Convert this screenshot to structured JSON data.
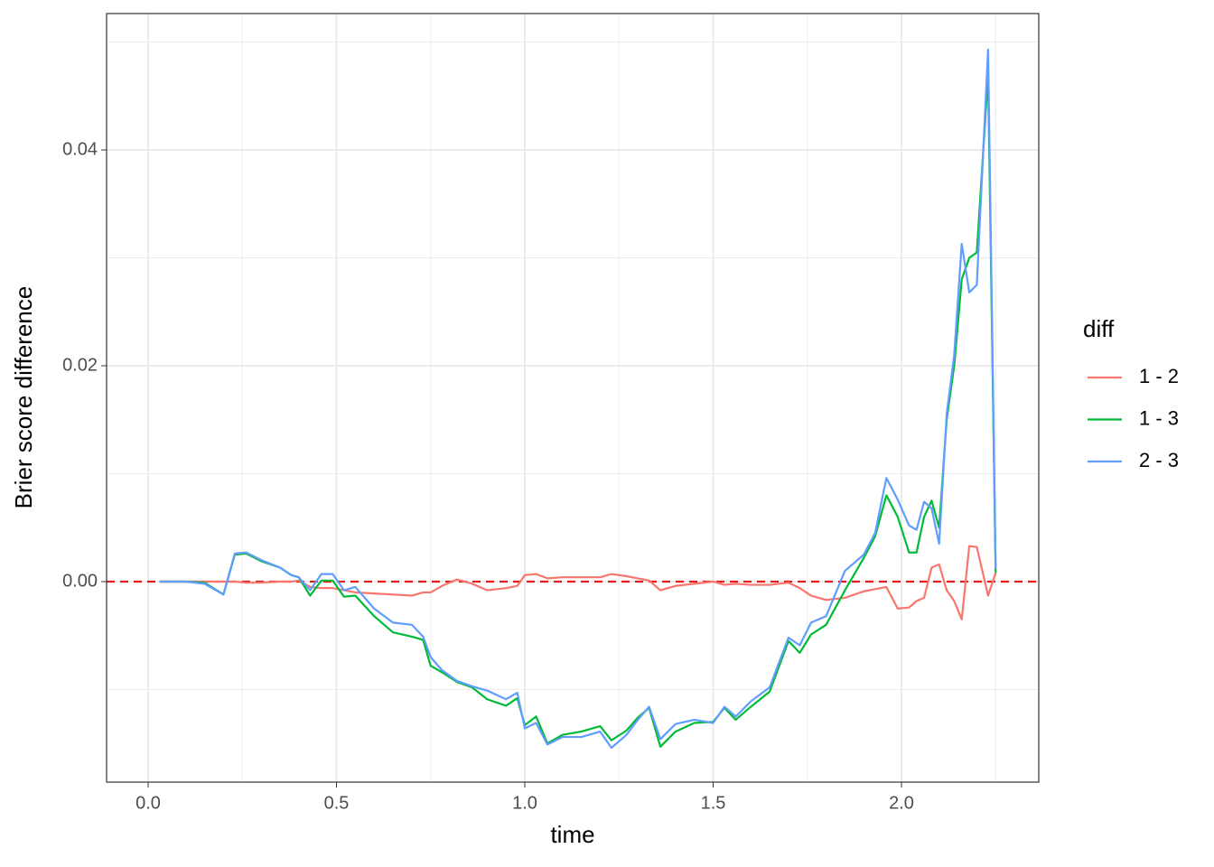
{
  "chart_data": {
    "type": "line",
    "x_label": "time",
    "y_label": "Brier score difference",
    "legend_title": "diff",
    "x": [
      0.03,
      0.1,
      0.15,
      0.2,
      0.23,
      0.26,
      0.3,
      0.35,
      0.38,
      0.4,
      0.43,
      0.46,
      0.49,
      0.52,
      0.55,
      0.6,
      0.65,
      0.7,
      0.73,
      0.75,
      0.78,
      0.82,
      0.86,
      0.9,
      0.95,
      0.98,
      1.0,
      1.03,
      1.06,
      1.1,
      1.15,
      1.2,
      1.23,
      1.27,
      1.3,
      1.33,
      1.36,
      1.4,
      1.45,
      1.5,
      1.53,
      1.56,
      1.6,
      1.65,
      1.7,
      1.73,
      1.76,
      1.8,
      1.85,
      1.9,
      1.93,
      1.96,
      1.99,
      2.02,
      2.04,
      2.06,
      2.08,
      2.1,
      2.12,
      2.14,
      2.16,
      2.18,
      2.2,
      2.23,
      2.25
    ],
    "series": [
      {
        "name": "1 - 2",
        "color": "#F8766D",
        "values": [
          0,
          0,
          0,
          0,
          0,
          -0.0001,
          -0.0001,
          0,
          0,
          0.0001,
          -0.0005,
          -0.0006,
          -0.0006,
          -0.0008,
          -0.001,
          -0.0011,
          -0.0012,
          -0.0013,
          -0.001,
          -0.001,
          -0.0004,
          0.0002,
          -0.0002,
          -0.0008,
          -0.0006,
          -0.0004,
          0.0006,
          0.0007,
          0.0003,
          0.0004,
          0.0004,
          0.0004,
          0.0007,
          0.0005,
          0.0003,
          0.0001,
          -0.0008,
          -0.0004,
          -0.0002,
          0,
          -0.0003,
          -0.0002,
          -0.0003,
          -0.0003,
          -0.0001,
          -0.0006,
          -0.0013,
          -0.0017,
          -0.0015,
          -0.0009,
          -0.0007,
          -0.0005,
          -0.0025,
          -0.0024,
          -0.0018,
          -0.0015,
          0.0013,
          0.0016,
          -0.0008,
          -0.0018,
          -0.0035,
          0.0033,
          0.0032,
          -0.0013,
          0.0008
        ]
      },
      {
        "name": "1 - 3",
        "color": "#00BA38",
        "values": [
          0,
          0,
          -0.0001,
          -0.0012,
          0.0025,
          0.0026,
          0.0019,
          0.0013,
          0.0006,
          0.0004,
          -0.0013,
          0.0001,
          0.0001,
          -0.0014,
          -0.0013,
          -0.0032,
          -0.0047,
          -0.0051,
          -0.0054,
          -0.0078,
          -0.0084,
          -0.0093,
          -0.0098,
          -0.0109,
          -0.0115,
          -0.0108,
          -0.0133,
          -0.0125,
          -0.015,
          -0.0142,
          -0.0139,
          -0.0134,
          -0.0147,
          -0.0138,
          -0.0126,
          -0.0117,
          -0.0153,
          -0.0139,
          -0.0131,
          -0.013,
          -0.0117,
          -0.0128,
          -0.0116,
          -0.0102,
          -0.0055,
          -0.0066,
          -0.0049,
          -0.004,
          -0.0008,
          0.0022,
          0.0042,
          0.008,
          0.006,
          0.0027,
          0.0027,
          0.006,
          0.0075,
          0.005,
          0.015,
          0.02,
          0.028,
          0.03,
          0.0305,
          0.047,
          0.0008
        ]
      },
      {
        "name": "2 - 3",
        "color": "#619CFF",
        "values": [
          0,
          0,
          -0.0002,
          -0.0012,
          0.0026,
          0.0027,
          0.002,
          0.0013,
          0.0006,
          0.0004,
          -0.0008,
          0.0007,
          0.0007,
          -0.0008,
          -0.0005,
          -0.0025,
          -0.0038,
          -0.004,
          -0.0051,
          -0.007,
          -0.0082,
          -0.0092,
          -0.0097,
          -0.0101,
          -0.0109,
          -0.0103,
          -0.0136,
          -0.0131,
          -0.0151,
          -0.0144,
          -0.0144,
          -0.0139,
          -0.0154,
          -0.0142,
          -0.0128,
          -0.0116,
          -0.0146,
          -0.0132,
          -0.0128,
          -0.0131,
          -0.0116,
          -0.0125,
          -0.0111,
          -0.0098,
          -0.0052,
          -0.0059,
          -0.0038,
          -0.0032,
          0.001,
          0.0025,
          0.0045,
          0.0096,
          0.0076,
          0.0052,
          0.0048,
          0.0074,
          0.0068,
          0.0035,
          0.0155,
          0.021,
          0.0313,
          0.0268,
          0.0275,
          0.0493,
          0.0012
        ]
      }
    ],
    "xlim": [
      -0.1103,
      2.3645
    ],
    "ylim": [
      -0.01858,
      0.05264
    ],
    "xticks": [
      {
        "value": 0,
        "label": "0.0"
      },
      0.5,
      {
        "value": 1,
        "label": "1.0"
      },
      1.5,
      {
        "value": 2,
        "label": "2.0"
      }
    ],
    "yticks": [
      {
        "value": 0,
        "label": "0.00"
      },
      {
        "value": 0.02,
        "label": "0.02"
      },
      {
        "value": 0.04,
        "label": "0.04"
      }
    ],
    "grid": true,
    "reference_line": {
      "y": 0,
      "color": "#e41a1c",
      "dashed": true
    },
    "legend": "right"
  }
}
